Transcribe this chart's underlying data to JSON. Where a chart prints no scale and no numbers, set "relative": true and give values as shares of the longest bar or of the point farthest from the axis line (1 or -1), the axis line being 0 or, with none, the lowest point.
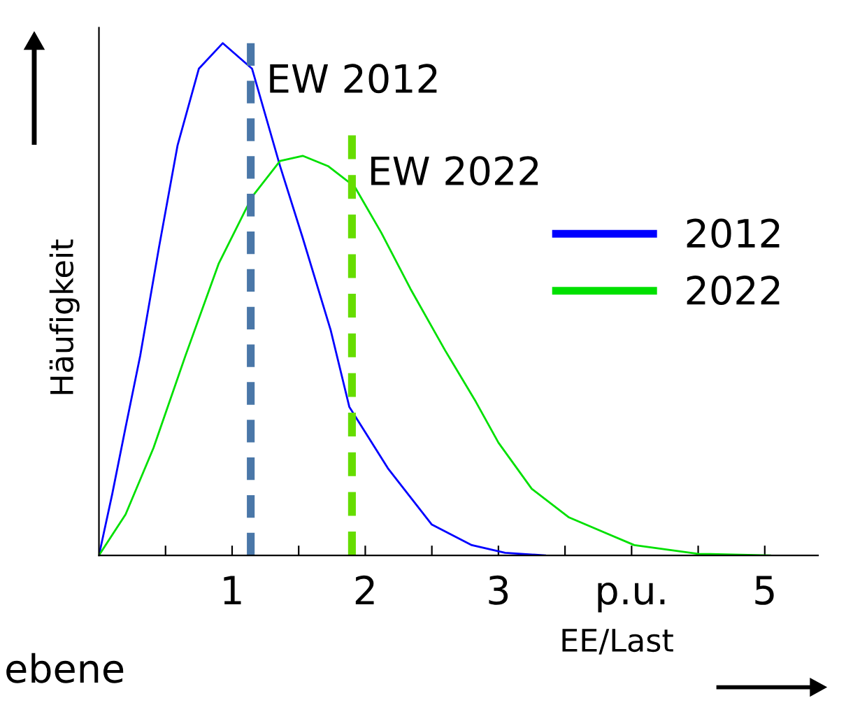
{
  "chart_data": {
    "type": "line",
    "relative": true,
    "xlabel": "EE/Last",
    "ylabel": "Häufigkeit",
    "xlim": [
      0,
      5.4
    ],
    "xticks": [
      {
        "value": 0.5,
        "label": null
      },
      1,
      {
        "value": 1.5,
        "label": null
      },
      2,
      {
        "value": 2.5,
        "label": null
      },
      3,
      {
        "value": 3.5,
        "label": null
      },
      {
        "value": 4,
        "label": "p.u."
      },
      {
        "value": 4.5,
        "label": null
      },
      5
    ],
    "legend": "right",
    "grid": false,
    "marker": "none",
    "series": [
      {
        "name": "2012",
        "color": "#0000ff",
        "line_style": "solid",
        "x": [
          0,
          0.1,
          0.2,
          0.31,
          0.45,
          0.59,
          0.75,
          0.93,
          1.15,
          1.36,
          1.53,
          1.74,
          1.88,
          2.17,
          2.5,
          2.8,
          3.05,
          3.35
        ],
        "values": [
          0,
          0.12,
          0.25,
          0.39,
          0.6,
          0.8,
          0.95,
          1.0,
          0.95,
          0.76,
          0.62,
          0.44,
          0.29,
          0.17,
          0.06,
          0.02,
          0.005,
          0
        ]
      },
      {
        "name": "2022",
        "color": "#00e000",
        "line_style": "solid",
        "x": [
          0,
          0.2,
          0.41,
          0.65,
          0.9,
          1.15,
          1.36,
          1.53,
          1.72,
          1.92,
          2.12,
          2.34,
          2.6,
          2.83,
          3.0,
          3.25,
          3.53,
          4.02,
          4.5,
          5.04
        ],
        "values": [
          0,
          0.08,
          0.21,
          0.39,
          0.57,
          0.7,
          0.77,
          0.78,
          0.76,
          0.72,
          0.63,
          0.52,
          0.4,
          0.3,
          0.22,
          0.13,
          0.074,
          0.02,
          0.003,
          0
        ]
      },
      {
        "color": "#4a77a8",
        "line_style": "dashed",
        "x": [
          1.14,
          1.14
        ],
        "values": [
          0,
          1.0
        ]
      },
      {
        "color": "#66dd00",
        "line_style": "dashed",
        "x": [
          1.9,
          1.9
        ],
        "values": [
          0,
          0.82
        ]
      }
    ],
    "annotations": [
      {
        "text": "EW 2012",
        "x": 1.14,
        "y": 1.0
      },
      {
        "text": "EW 2022",
        "x": 1.9,
        "y": 0.82
      },
      "ebene"
    ]
  }
}
